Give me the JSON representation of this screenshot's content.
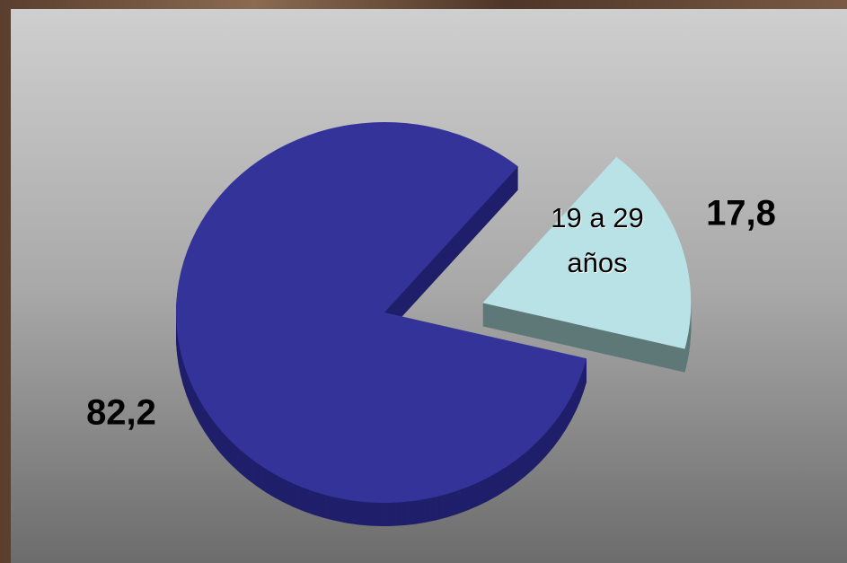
{
  "chart_data": {
    "type": "pie",
    "categories": [
      null,
      "19 a 29 años"
    ],
    "values": [
      82.2,
      17.8
    ],
    "value_labels": [
      "82,2",
      "17,8"
    ],
    "colors": [
      "#333399",
      "#b8e2e6"
    ],
    "side_colors": [
      "#1f1f6a",
      "#5e7878"
    ]
  }
}
